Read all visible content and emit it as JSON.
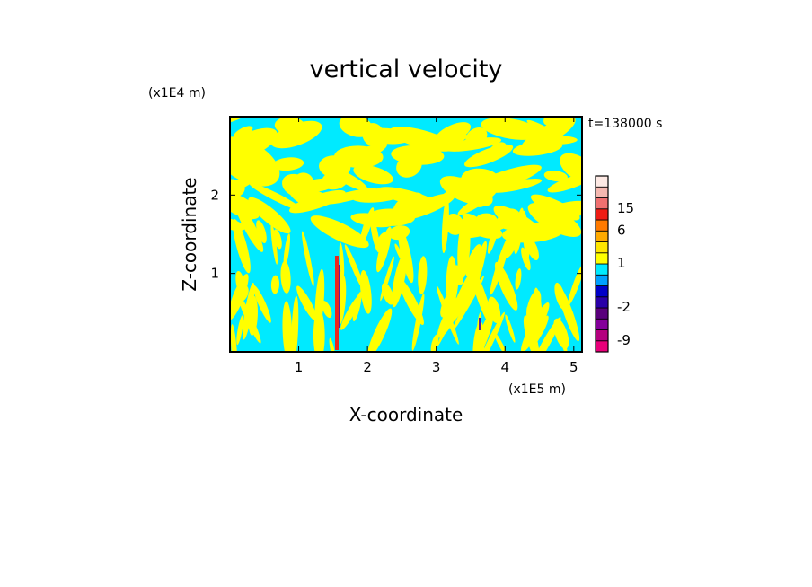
{
  "chart_data": {
    "type": "heatmap",
    "title": "vertical velocity",
    "xlabel": "X-coordinate",
    "ylabel": "Z-coordinate",
    "x_unit": "(x1E5 m)",
    "y_unit": "(x1E4 m)",
    "time_label": "t=138000 s",
    "xlim": [
      0,
      5.12
    ],
    "ylim": [
      0,
      3.0
    ],
    "x_ticks": [
      1,
      2,
      3,
      4,
      5
    ],
    "x_tick_labels": [
      "1",
      "2",
      "3",
      "4",
      "5"
    ],
    "y_ticks": [
      1,
      2
    ],
    "y_tick_labels": [
      "1",
      "2"
    ],
    "field_colors": {
      "upward": "#ffff00",
      "downward": "#00eaff",
      "strong_up": "#e8281e",
      "strong_down": "#5a1aa0"
    },
    "colorbar": {
      "levels": [
        {
          "color": "#e9007a",
          "label": ""
        },
        {
          "color": "#b4007e",
          "label": "-9"
        },
        {
          "color": "#84009a",
          "label": ""
        },
        {
          "color": "#5a007c",
          "label": ""
        },
        {
          "color": "#2a00a8",
          "label": "-2"
        },
        {
          "color": "#0000c8",
          "label": ""
        },
        {
          "color": "#00a0ff",
          "label": ""
        },
        {
          "color": "#00eaff",
          "label": ""
        },
        {
          "color": "#ffff00",
          "label": "1"
        },
        {
          "color": "#ffe600",
          "label": ""
        },
        {
          "color": "#ffaa00",
          "label": ""
        },
        {
          "color": "#ff7a00",
          "label": "6"
        },
        {
          "color": "#ee1c14",
          "label": ""
        },
        {
          "color": "#f07070",
          "label": "15"
        },
        {
          "color": "#f5b8b0",
          "label": ""
        },
        {
          "color": "#fde9e4",
          "label": ""
        }
      ]
    }
  }
}
